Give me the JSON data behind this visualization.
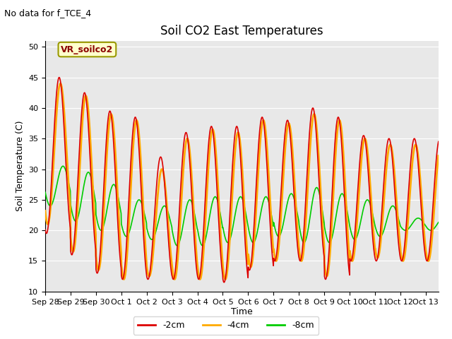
{
  "title": "Soil CO2 East Temperatures",
  "subtitle": "No data for f_TCE_4",
  "ylabel": "Soil Temperature (C)",
  "xlabel": "Time",
  "annotation": "VR_soilco2",
  "ylim": [
    10,
    51
  ],
  "yticks": [
    10,
    15,
    20,
    25,
    30,
    35,
    40,
    45,
    50
  ],
  "series_labels": [
    "-2cm",
    "-4cm",
    "-8cm"
  ],
  "series_colors": [
    "#dd0000",
    "#ffaa00",
    "#00cc00"
  ],
  "background_color": "#e8e8e8",
  "xtick_labels": [
    "Sep 28",
    "Sep 29",
    "Sep 30",
    "Oct 1",
    "Oct 2",
    "Oct 3",
    "Oct 4",
    "Oct 5",
    "Oct 6",
    "Oct 7",
    "Oct 8",
    "Oct 9",
    "Oct 10",
    "Oct 11",
    "Oct 12",
    "Oct 13"
  ],
  "peaks_2cm": [
    45,
    42.5,
    39.5,
    38.5,
    32,
    36,
    37,
    37,
    38.5,
    38,
    40,
    38.5,
    35.5,
    35,
    35
  ],
  "troughs_2cm": [
    19.5,
    16,
    13,
    12,
    12,
    12,
    12,
    11.5,
    13.5,
    15,
    15,
    12,
    15,
    15,
    15
  ],
  "peaks_4cm": [
    44,
    42,
    39,
    38,
    30,
    35,
    36.5,
    36,
    38,
    37.5,
    39,
    38,
    35,
    34,
    34
  ],
  "troughs_4cm": [
    21,
    16.5,
    13.5,
    12,
    12.5,
    12,
    12,
    12,
    14,
    15,
    15,
    12.5,
    15,
    15.5,
    15
  ],
  "peaks_8cm": [
    30.5,
    29.5,
    27.5,
    25,
    24,
    25,
    25.5,
    25.5,
    25.5,
    26,
    27,
    26,
    25,
    24,
    22
  ],
  "troughs_8cm": [
    24,
    21.5,
    20,
    19,
    18.5,
    17.5,
    17.5,
    18,
    18,
    19,
    18,
    18,
    18.5,
    19,
    20
  ],
  "peak_times": [
    0.55,
    0.6,
    0.7
  ],
  "num_days": 15.5,
  "title_fontsize": 12,
  "label_fontsize": 9,
  "tick_fontsize": 8,
  "legend_fontsize": 9
}
